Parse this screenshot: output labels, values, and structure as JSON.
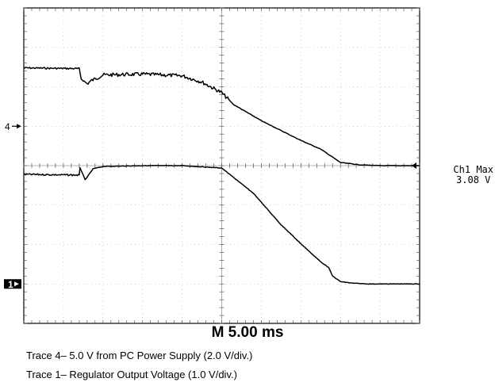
{
  "chart_data": {
    "type": "line",
    "title": "",
    "xlabel": "",
    "ylabel": "",
    "grid": true,
    "x_divisions": 10,
    "y_divisions": 8,
    "series": [
      {
        "channel": "4",
        "marker": "4",
        "marker_level_div": 1.0,
        "color": "#000000",
        "x_div": [
          0,
          1.4,
          1.45,
          1.6,
          1.7,
          2.0,
          3.0,
          4.0,
          4.5,
          5.0,
          5.3,
          6.0,
          7.0,
          7.5,
          8.0,
          8.5,
          9.0,
          9.5,
          10.0
        ],
        "y_div": [
          2.48,
          2.46,
          2.2,
          2.08,
          2.15,
          2.3,
          2.32,
          2.28,
          2.12,
          1.85,
          1.55,
          1.14,
          0.64,
          0.42,
          0.08,
          0.02,
          0.0,
          0.0,
          0.0
        ],
        "noisy_until_div": 5.2
      },
      {
        "channel": "1",
        "marker": "1",
        "marker_level_div": -3.0,
        "color": "#000000",
        "x_div": [
          0,
          1.4,
          1.42,
          1.55,
          1.75,
          2.0,
          3.0,
          4.0,
          5.0,
          5.8,
          6.5,
          7.0,
          7.5,
          7.7,
          7.8,
          8.0,
          8.3,
          8.7,
          9.0,
          9.5,
          10.0
        ],
        "y_div": [
          -0.22,
          -0.24,
          -0.05,
          -0.36,
          -0.08,
          -0.02,
          0.0,
          0.0,
          -0.06,
          -0.7,
          -1.5,
          -1.98,
          -2.44,
          -2.58,
          -2.8,
          -2.94,
          -2.98,
          -3.0,
          -3.0,
          -3.0,
          -3.0
        ],
        "noisy_until_div": 1.4
      }
    ],
    "trigger_marker": {
      "level_div": 0.0
    }
  },
  "timebase_label": "M 5.00 ms",
  "readout": {
    "line1": "Ch1 Max",
    "line2": "3.08 V"
  },
  "captions": [
    "Trace 4– 5.0 V from PC Power Supply (2.0 V/div.)",
    "Trace 1– Regulator Output Voltage (1.0 V/div.)"
  ]
}
